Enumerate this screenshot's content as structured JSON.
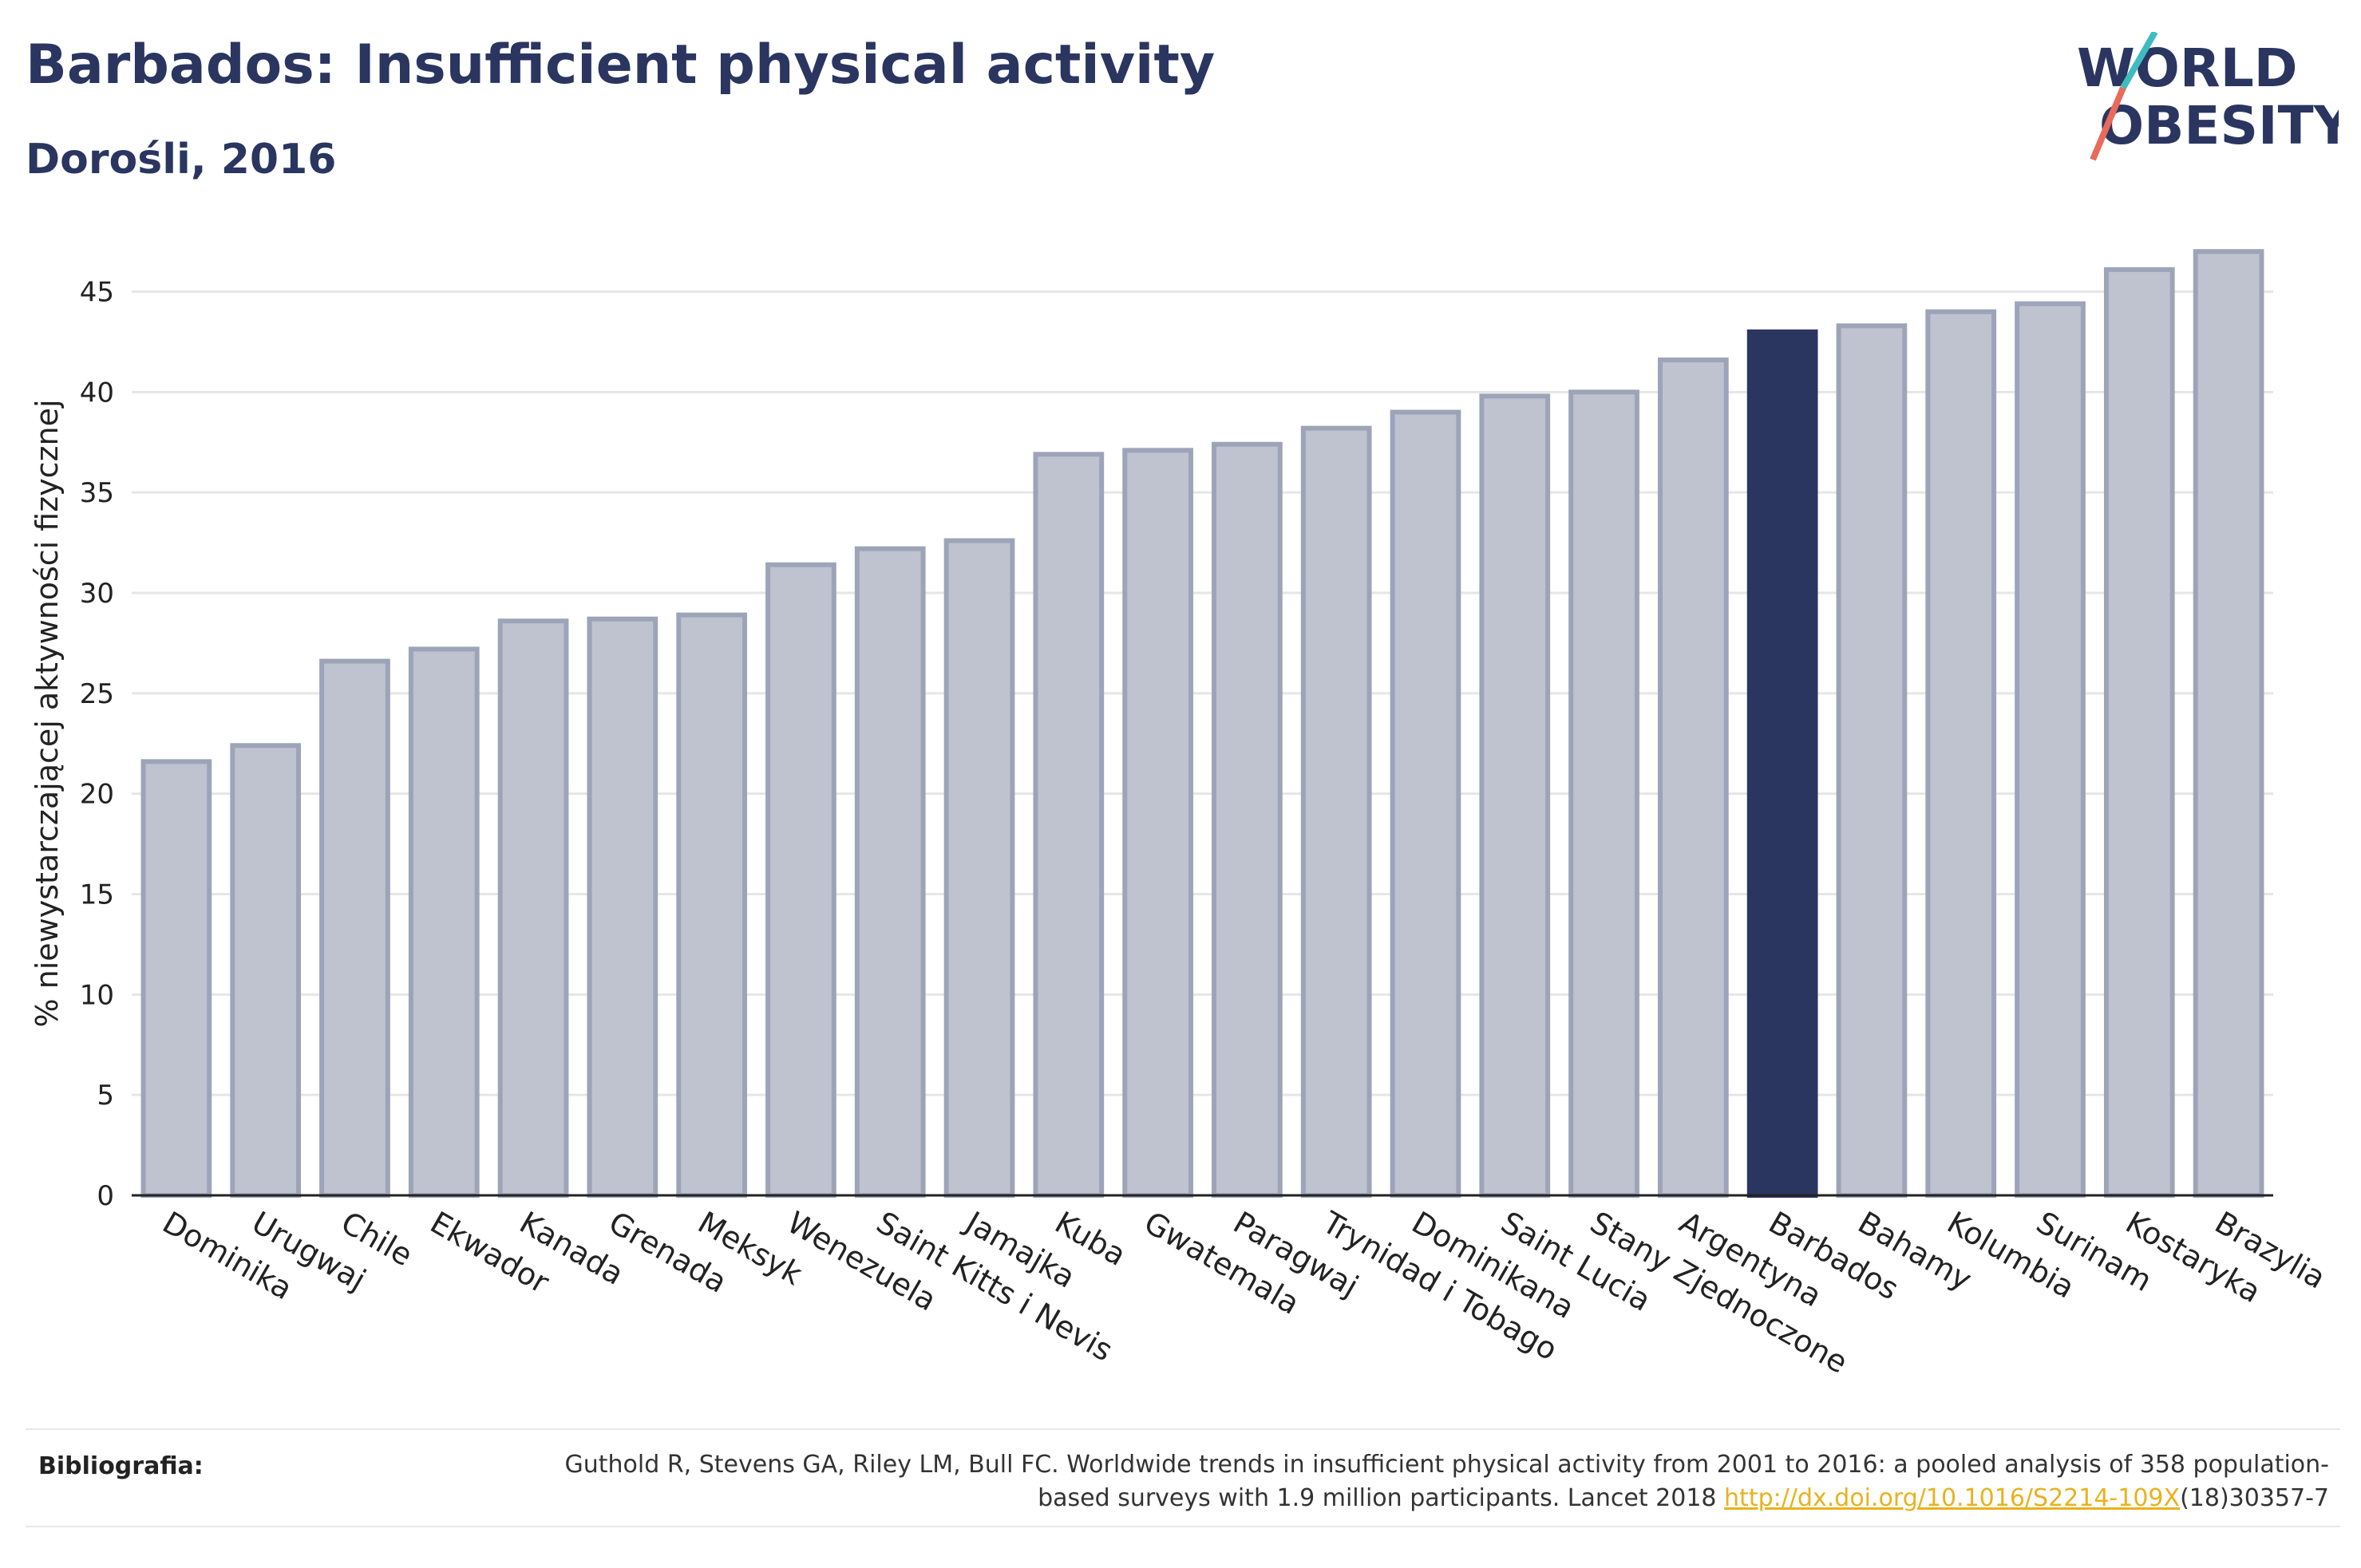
{
  "header": {
    "title": "Barbados: Insufficient physical activity",
    "subtitle": "Dorośli, 2016"
  },
  "logo": {
    "line1": "WORLD",
    "line2": "OBESITY"
  },
  "chart_data": {
    "type": "bar",
    "ylabel": "% niewystarczającej aktywności fizycznej",
    "ylim": [
      0,
      48
    ],
    "yticks": [
      0,
      5,
      10,
      15,
      20,
      25,
      30,
      35,
      40,
      45
    ],
    "grid": true,
    "categories": [
      "Dominika",
      "Urugwaj",
      "Chile",
      "Ekwador",
      "Kanada",
      "Grenada",
      "Meksyk",
      "Wenezuela",
      "Saint Kitts i Nevis",
      "Jamajka",
      "Kuba",
      "Gwatemala",
      "Paragwaj",
      "Trynidad i Tobago",
      "Dominikana",
      "Saint Lucia",
      "Stany Zjednoczone",
      "Argentyna",
      "Barbados",
      "Bahamy",
      "Kolumbia",
      "Surinam",
      "Kostaryka",
      "Brazylia"
    ],
    "values": [
      21.6,
      22.4,
      26.6,
      27.2,
      28.6,
      28.7,
      28.9,
      31.4,
      32.2,
      32.6,
      36.9,
      37.1,
      37.4,
      38.2,
      39.0,
      39.8,
      40.0,
      41.6,
      43.0,
      43.3,
      44.0,
      44.4,
      46.1,
      47.0
    ],
    "highlight": "Barbados",
    "colors": {
      "bar": "#bfc3d0",
      "bar_border": "#9ea4b8",
      "highlight": "#2a3560",
      "grid": "#e6e6e6",
      "axis": "#222222"
    }
  },
  "footer": {
    "label": "Bibliografia:",
    "text_before": "Guthold R, Stevens GA, Riley LM, Bull FC. Worldwide trends in insufficient physical activity from 2001 to 2016: a pooled analysis of 358 population-based surveys with 1.9 million participants. Lancet 2018 ",
    "link": "http://dx.doi.org/10.1016/S2214-109X",
    "text_after": "(18)30357-7"
  }
}
